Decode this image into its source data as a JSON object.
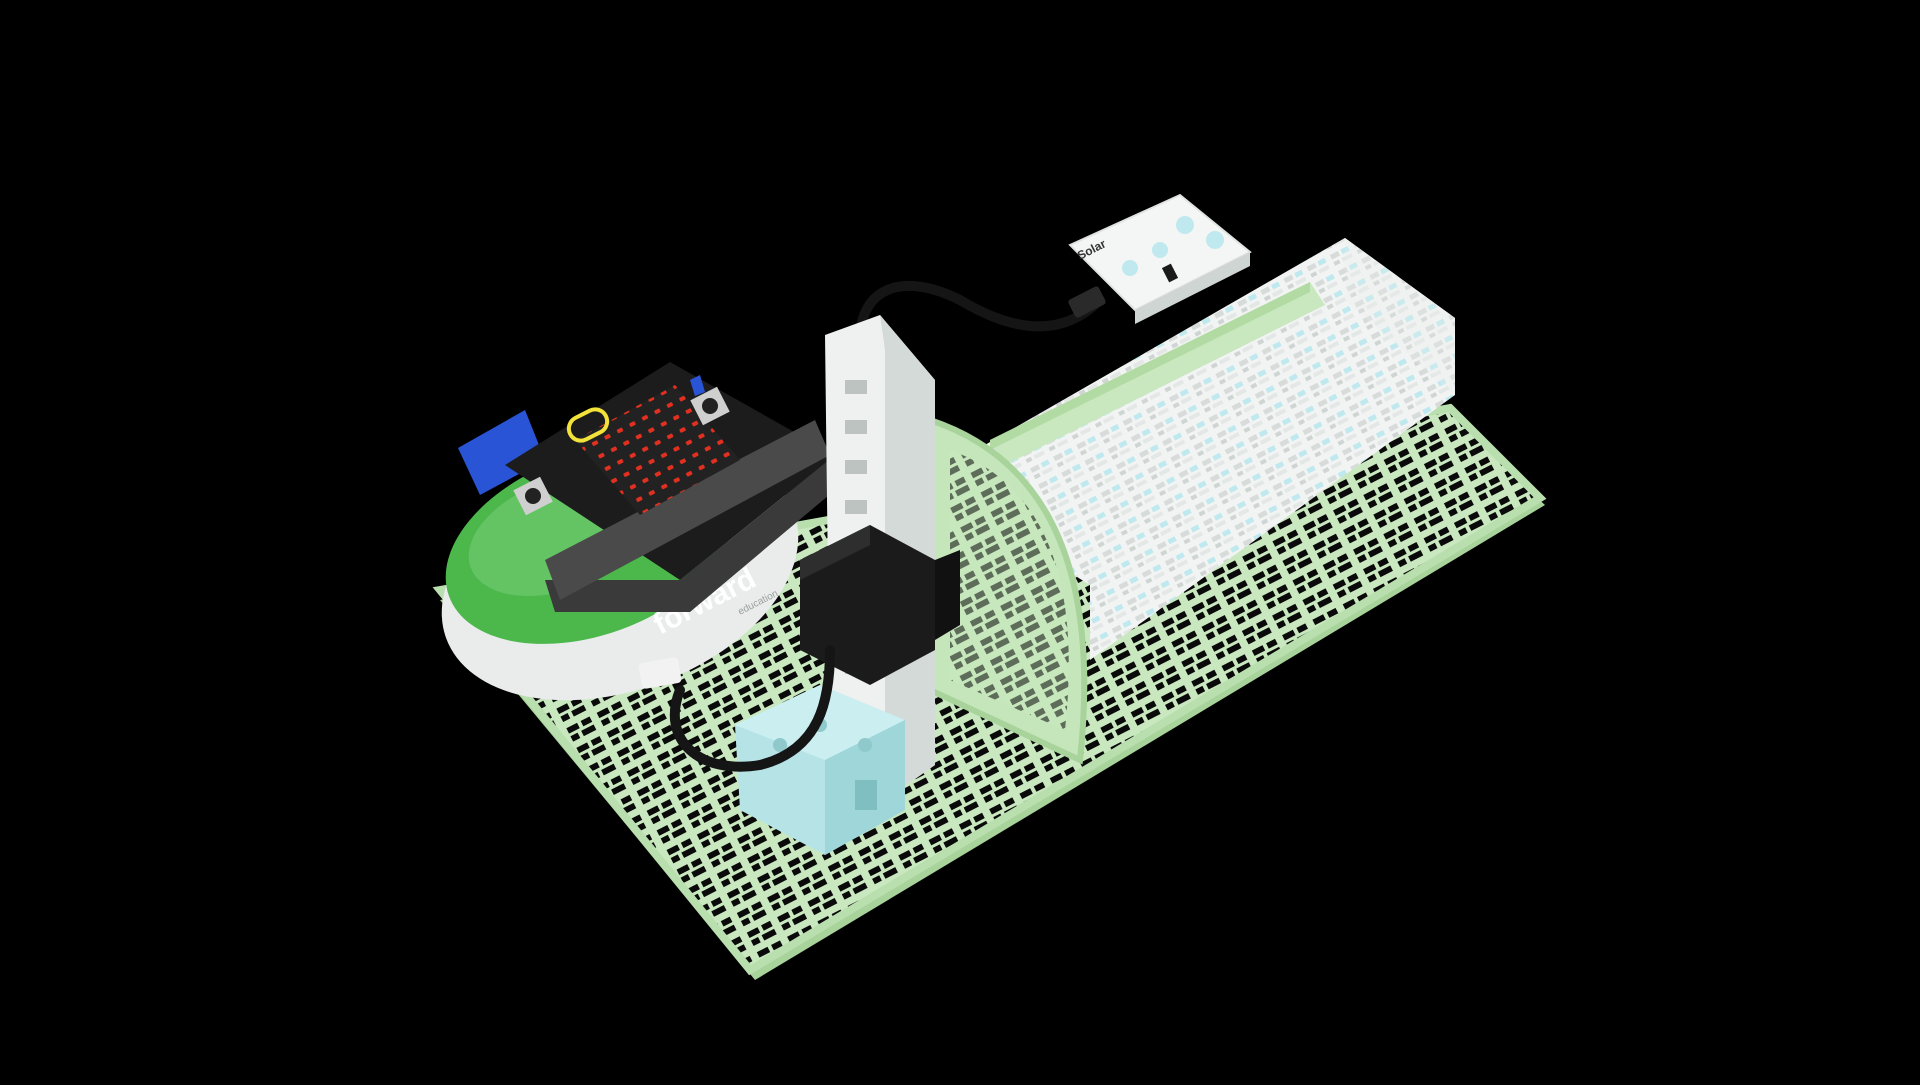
{
  "scene": {
    "background_color": "#000000",
    "subject": "solar tracker model on green grid baseplate with micro:bit controller",
    "colors": {
      "baseplate": "#c9e8bf",
      "baseplate_shadow": "#a8d39b",
      "panel_white": "#f4f6f5",
      "panel_accent": "#bfe9ee",
      "microbit": "#222222",
      "led_red": "#e23020",
      "logo_yellow": "#f2e23a",
      "cable": "#151515",
      "servo_block": "#b6e4e6",
      "expansion_green": "#4cb84c",
      "expansion_blue": "#2a54d6"
    }
  },
  "labels": {
    "solar_module": "Solar",
    "expansion_board": "forward",
    "expansion_sub": "education"
  }
}
